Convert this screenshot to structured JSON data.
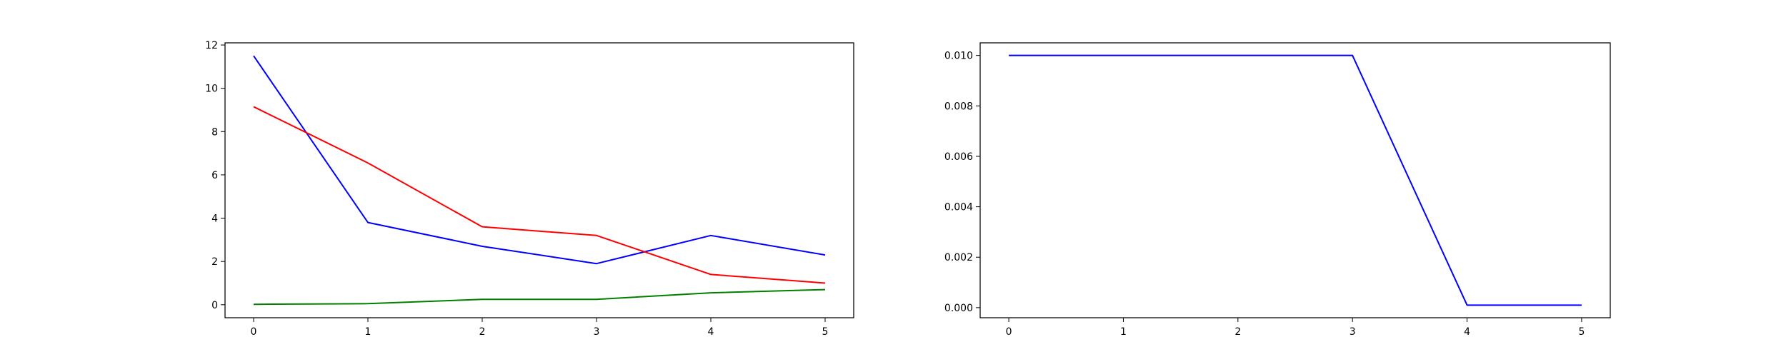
{
  "chart_data": [
    {
      "type": "line",
      "x": [
        0,
        1,
        2,
        3,
        4,
        5
      ],
      "xlim": [
        -0.25,
        5.25
      ],
      "ylim": [
        -0.6,
        12.1
      ],
      "xticks": [
        0,
        1,
        2,
        3,
        4,
        5
      ],
      "yticks": [
        0,
        2,
        4,
        6,
        8,
        10,
        12
      ],
      "grid": false,
      "series": [
        {
          "color": "#0000ff",
          "values": [
            11.5,
            3.8,
            2.7,
            1.9,
            3.2,
            2.3
          ]
        },
        {
          "color": "#ff0000",
          "values": [
            9.15,
            6.55,
            3.6,
            3.2,
            1.4,
            1.0
          ]
        },
        {
          "color": "#008000",
          "values": [
            0.02,
            0.05,
            0.25,
            0.25,
            0.55,
            0.7
          ]
        }
      ]
    },
    {
      "type": "line",
      "x": [
        0,
        1,
        2,
        3,
        4,
        5
      ],
      "xlim": [
        -0.25,
        5.25
      ],
      "ylim": [
        -0.0004,
        0.0105
      ],
      "xticks": [
        0,
        1,
        2,
        3,
        4,
        5
      ],
      "yticks": [
        0.0,
        0.002,
        0.004,
        0.006,
        0.008,
        0.01
      ],
      "ytick_format": 3,
      "grid": false,
      "series": [
        {
          "color": "#0000ff",
          "values": [
            0.01,
            0.01,
            0.01,
            0.01,
            0.0001,
            0.0001
          ]
        }
      ]
    }
  ]
}
